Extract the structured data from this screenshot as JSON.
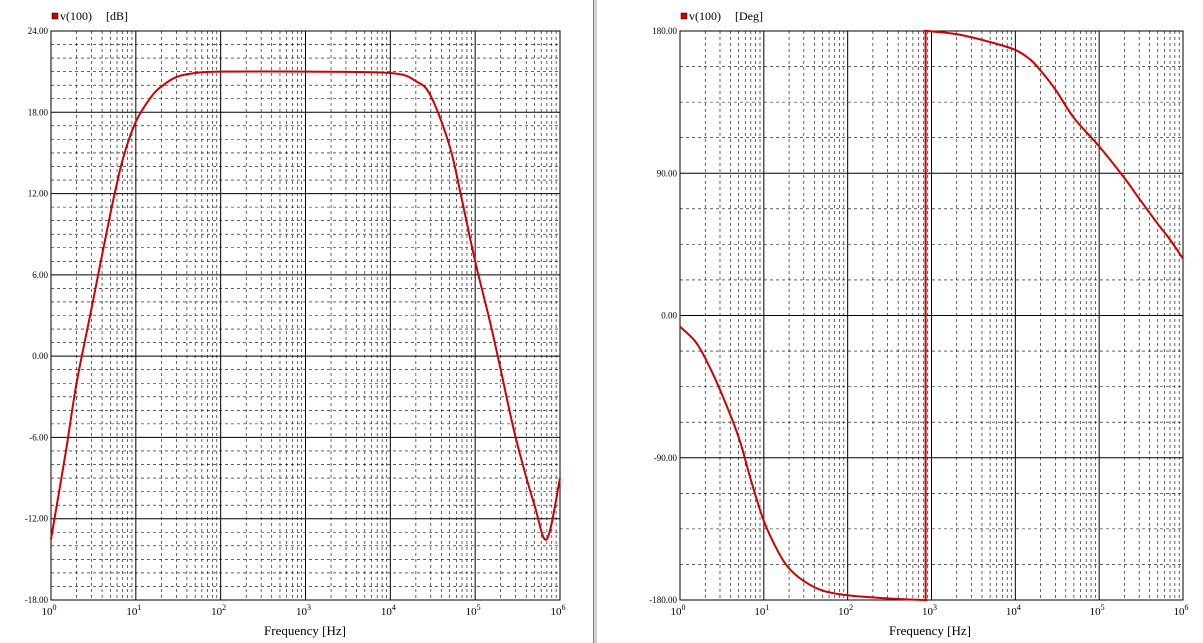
{
  "chart_data": [
    {
      "type": "line",
      "legend": {
        "series": "v(100)",
        "unit": "[dB]"
      },
      "xlabel": "Frequency [Hz]",
      "xscale": "log",
      "xlim": [
        1,
        1000000
      ],
      "ylim": [
        -18,
        24
      ],
      "yticks": [
        "24.00",
        "18.00",
        "12.00",
        "6.00",
        "0.00",
        "-6.00",
        "-12.00",
        "-18.00"
      ],
      "ytick_values": [
        24,
        18,
        12,
        6,
        0,
        -6,
        -12,
        -18
      ],
      "xticks": [
        {
          "base": "10",
          "exp": "0"
        },
        {
          "base": "10",
          "exp": "1"
        },
        {
          "base": "10",
          "exp": "2"
        },
        {
          "base": "10",
          "exp": "3"
        },
        {
          "base": "10",
          "exp": "4"
        },
        {
          "base": "10",
          "exp": "5"
        },
        {
          "base": "10",
          "exp": "6"
        }
      ],
      "grid": true,
      "series_color": "#d00000",
      "series": [
        {
          "name": "v(100)",
          "points": [
            [
              1,
              -13.5
            ],
            [
              1.5,
              -7.0
            ],
            [
              2,
              -2.0
            ],
            [
              3,
              3.5
            ],
            [
              5,
              10.5
            ],
            [
              7,
              14.5
            ],
            [
              10,
              17.3
            ],
            [
              15,
              19.1
            ],
            [
              20,
              19.9
            ],
            [
              30,
              20.6
            ],
            [
              50,
              20.9
            ],
            [
              100,
              21.0
            ],
            [
              1000,
              21.0
            ],
            [
              10000,
              20.9
            ],
            [
              20000,
              20.3
            ],
            [
              30000,
              19.2
            ],
            [
              50000,
              15.5
            ],
            [
              70000,
              11.5
            ],
            [
              100000,
              7.0
            ],
            [
              150000,
              2.5
            ],
            [
              200000,
              -1.0
            ],
            [
              300000,
              -6.0
            ],
            [
              500000,
              -11.0
            ],
            [
              700000,
              -13.5
            ],
            [
              1000000,
              -9.0
            ]
          ]
        }
      ]
    },
    {
      "type": "line",
      "legend": {
        "series": "v(100)",
        "unit": "[Deg]"
      },
      "xlabel": "Frequency [Hz]",
      "xscale": "log",
      "xlim": [
        1,
        1000000
      ],
      "ylim": [
        -180,
        180
      ],
      "yticks": [
        "180.00",
        "90.00",
        "0.00",
        "-90.00",
        "-180.00"
      ],
      "ytick_values": [
        180,
        90,
        0,
        -90,
        -180
      ],
      "xticks": [
        {
          "base": "10",
          "exp": "0"
        },
        {
          "base": "10",
          "exp": "1"
        },
        {
          "base": "10",
          "exp": "2"
        },
        {
          "base": "10",
          "exp": "3"
        },
        {
          "base": "10",
          "exp": "4"
        },
        {
          "base": "10",
          "exp": "5"
        },
        {
          "base": "10",
          "exp": "6"
        }
      ],
      "grid": true,
      "series_color": "#d00000",
      "series": [
        {
          "name": "v(100)",
          "points": [
            [
              1,
              -7
            ],
            [
              1.5,
              -16
            ],
            [
              2,
              -27
            ],
            [
              3,
              -47
            ],
            [
              5,
              -77
            ],
            [
              7,
              -104
            ],
            [
              10,
              -130
            ],
            [
              15,
              -150
            ],
            [
              20,
              -160
            ],
            [
              30,
              -168
            ],
            [
              50,
              -174
            ],
            [
              100,
              -177
            ],
            [
              300,
              -179
            ],
            [
              800,
              -180
            ],
            [
              850,
              -180
            ],
            [
              850,
              180
            ],
            [
              900,
              180
            ],
            [
              2000,
              178
            ],
            [
              5000,
              173
            ],
            [
              10000,
              168
            ],
            [
              15000,
              162
            ],
            [
              20000,
              155
            ],
            [
              30000,
              143
            ],
            [
              50000,
              125
            ],
            [
              100000,
              107
            ],
            [
              200000,
              87
            ],
            [
              300000,
              74
            ],
            [
              500000,
              58
            ],
            [
              700000,
              48
            ],
            [
              1000000,
              36
            ]
          ]
        }
      ]
    }
  ]
}
